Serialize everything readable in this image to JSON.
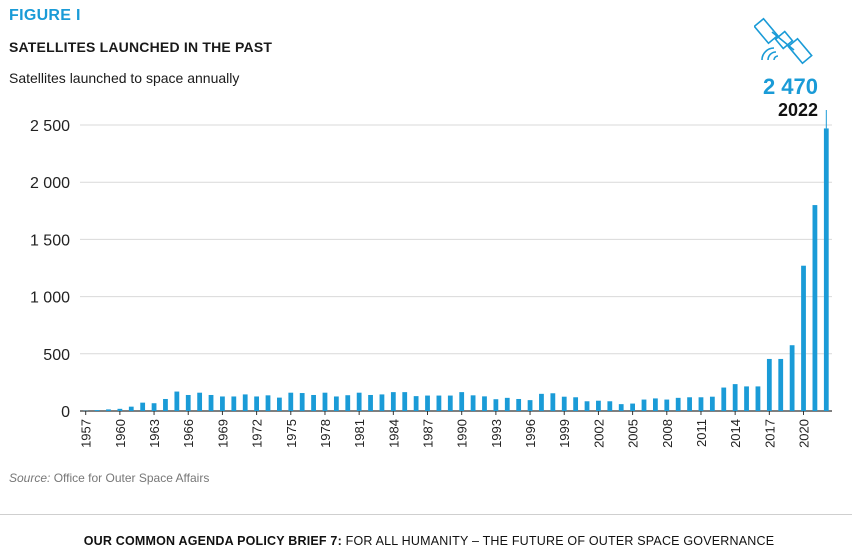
{
  "figure_label": "FIGURE I",
  "title": "SATELLITES LAUNCHED IN THE PAST",
  "subtitle": "Satellites launched to space annually",
  "callout": {
    "value": "2 470",
    "year": "2022",
    "icon": "satellite-icon"
  },
  "source_label": "Source:",
  "source_text": "Office for Outer Space Affairs",
  "footer": {
    "bold": "OUR COMMON AGENDA POLICY BRIEF 7:",
    "regular": "FOR ALL HUMANITY – THE FUTURE OF OUTER SPACE GOVERNANCE"
  },
  "colors": {
    "accent": "#1a9bd7",
    "bar": "#1a9bd7",
    "grid": "#d9d9d9"
  },
  "chart_data": {
    "type": "bar",
    "xlabel": "",
    "ylabel": "",
    "ylim": [
      0,
      2500
    ],
    "y_ticks": [
      0,
      500,
      1000,
      1500,
      2000,
      2500
    ],
    "y_tick_labels": [
      "0",
      "500",
      "1 000",
      "1 500",
      "2 000",
      "2 500"
    ],
    "x_tick_labels": [
      "1957",
      "1960",
      "1963",
      "1966",
      "1969",
      "1972",
      "1975",
      "1978",
      "1981",
      "1984",
      "1987",
      "1990",
      "1993",
      "1996",
      "1999",
      "2002",
      "2005",
      "2008",
      "2011",
      "2014",
      "2017",
      "2020"
    ],
    "grid": true,
    "categories": [
      1957,
      1958,
      1959,
      1960,
      1961,
      1962,
      1963,
      1964,
      1965,
      1966,
      1967,
      1968,
      1969,
      1970,
      1971,
      1972,
      1973,
      1974,
      1975,
      1976,
      1977,
      1978,
      1979,
      1980,
      1981,
      1982,
      1983,
      1984,
      1985,
      1986,
      1987,
      1988,
      1989,
      1990,
      1991,
      1992,
      1993,
      1994,
      1995,
      1996,
      1997,
      1998,
      1999,
      2000,
      2001,
      2002,
      2003,
      2004,
      2005,
      2006,
      2007,
      2008,
      2009,
      2010,
      2011,
      2012,
      2013,
      2014,
      2015,
      2016,
      2017,
      2018,
      2019,
      2020,
      2021,
      2022
    ],
    "values": [
      2,
      8,
      14,
      19,
      38,
      73,
      68,
      105,
      170,
      140,
      160,
      140,
      127,
      127,
      145,
      127,
      137,
      117,
      160,
      157,
      140,
      160,
      127,
      138,
      160,
      140,
      145,
      165,
      165,
      130,
      135,
      135,
      135,
      165,
      137,
      128,
      103,
      115,
      105,
      95,
      150,
      155,
      125,
      120,
      85,
      90,
      85,
      60,
      65,
      100,
      110,
      100,
      115,
      120,
      120,
      125,
      205,
      235,
      215,
      215,
      455,
      455,
      575,
      1270,
      1800,
      2470
    ]
  }
}
